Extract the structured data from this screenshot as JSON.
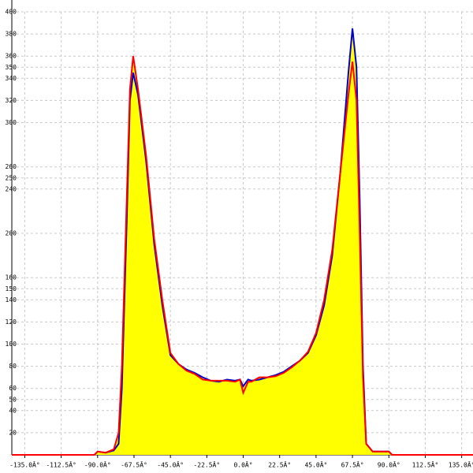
{
  "chart_data": {
    "type": "area",
    "x": [
      -143,
      -100,
      -92,
      -90,
      -85,
      -80,
      -77,
      -75,
      -72,
      -70,
      -68,
      -65,
      -60,
      -55,
      -50,
      -45,
      -40,
      -35,
      -30,
      -25,
      -20,
      -15,
      -10,
      -5,
      -2,
      0,
      3,
      5,
      10,
      15,
      20,
      25,
      30,
      35,
      40,
      45,
      50,
      55,
      60,
      65,
      67.5,
      70,
      72,
      74,
      76,
      80,
      90,
      92,
      100,
      142
    ],
    "series": [
      {
        "name": "blue",
        "color": "#0000cc",
        "values": [
          0,
          0,
          0,
          3,
          2,
          4,
          10,
          60,
          210,
          320,
          345,
          325,
          265,
          190,
          135,
          90,
          82,
          77,
          74,
          70,
          67,
          66,
          68,
          67,
          68,
          62,
          68,
          67,
          68,
          70,
          72,
          75,
          80,
          85,
          92,
          108,
          135,
          180,
          255,
          345,
          385,
          350,
          230,
          80,
          10,
          3,
          3,
          0,
          0,
          0
        ]
      },
      {
        "name": "red",
        "color": "#ff0000",
        "values": [
          0,
          0,
          0,
          3,
          2,
          5,
          20,
          80,
          230,
          330,
          360,
          330,
          270,
          195,
          140,
          92,
          82,
          76,
          73,
          68,
          67,
          67,
          67,
          66,
          68,
          56,
          66,
          66,
          70,
          70,
          71,
          74,
          79,
          85,
          93,
          110,
          140,
          185,
          255,
          325,
          355,
          320,
          200,
          70,
          10,
          3,
          3,
          0,
          0,
          0
        ]
      }
    ],
    "fill": "#ffff00",
    "xlim": [
      -143,
      142
    ],
    "ylim": [
      0,
      400
    ],
    "xticks": [
      {
        "value": -135,
        "label": "-135.0Â°"
      },
      {
        "value": -112.5,
        "label": "-112.5Â°"
      },
      {
        "value": -90,
        "label": "-90.0Â°"
      },
      {
        "value": -67.5,
        "label": "-67.5Â°"
      },
      {
        "value": -45,
        "label": "-45.0Â°"
      },
      {
        "value": -22.5,
        "label": "-22.5Â°"
      },
      {
        "value": 0,
        "label": "0.0Â°"
      },
      {
        "value": 22.5,
        "label": "22.5Â°"
      },
      {
        "value": 45,
        "label": "45.0Â°"
      },
      {
        "value": 67.5,
        "label": "67.5Â°"
      },
      {
        "value": 90,
        "label": "90.0Â°"
      },
      {
        "value": 112.5,
        "label": "112.5Â°"
      },
      {
        "value": 135,
        "label": "135.0Â°"
      }
    ],
    "yticks": [
      20,
      40,
      50,
      60,
      80,
      100,
      120,
      140,
      150,
      160,
      200,
      240,
      250,
      260,
      300,
      320,
      340,
      350,
      360,
      380,
      400
    ],
    "grid": true
  }
}
